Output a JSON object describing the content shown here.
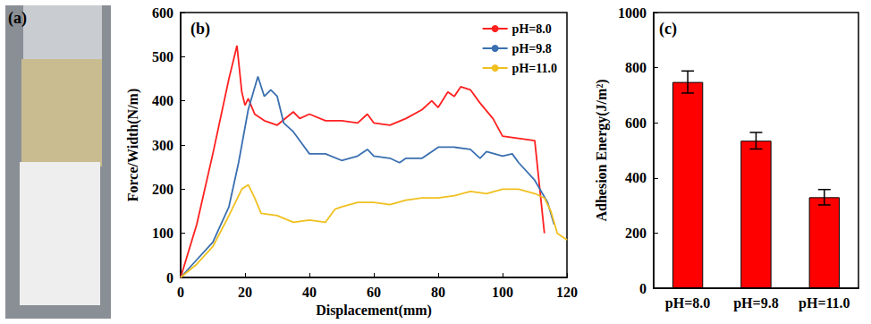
{
  "photo": {
    "label": "(a)"
  },
  "chart_data": [
    {
      "type": "line",
      "title": "(b)",
      "x_label": "Displacement(mm)",
      "y_label": "Force/Width(N/m)",
      "xlim": [
        0,
        120
      ],
      "xticks": [
        0,
        20,
        40,
        60,
        80,
        100,
        120
      ],
      "ylim": [
        0,
        600
      ],
      "yticks": [
        0,
        100,
        200,
        300,
        400,
        500,
        600
      ],
      "grid": false,
      "legend": "top-right",
      "series": [
        {
          "name": "pH=8.0",
          "color": "#ff2020",
          "x": [
            0,
            5,
            10,
            15,
            17.5,
            19,
            20,
            21,
            23,
            26,
            30,
            35,
            37,
            40,
            45,
            50,
            55,
            58,
            60,
            65,
            70,
            75,
            78,
            80,
            83,
            85,
            87,
            90,
            93,
            97,
            100,
            105,
            110,
            113
          ],
          "values": [
            0,
            120,
            280,
            450,
            525,
            420,
            390,
            405,
            370,
            355,
            345,
            375,
            360,
            370,
            355,
            355,
            350,
            370,
            350,
            345,
            360,
            380,
            400,
            385,
            420,
            410,
            432,
            425,
            395,
            360,
            320,
            315,
            310,
            100
          ]
        },
        {
          "name": "pH=9.8",
          "color": "#3a6fb0",
          "x": [
            0,
            5,
            10,
            15,
            18,
            21,
            24,
            26,
            28,
            30,
            32,
            35,
            38,
            40,
            45,
            50,
            55,
            58,
            60,
            65,
            68,
            70,
            75,
            78,
            80,
            85,
            90,
            93,
            95,
            100,
            103,
            105,
            110,
            114,
            116
          ],
          "values": [
            0,
            40,
            80,
            160,
            260,
            380,
            455,
            410,
            425,
            410,
            350,
            330,
            300,
            280,
            280,
            265,
            275,
            290,
            275,
            270,
            260,
            270,
            270,
            285,
            295,
            295,
            290,
            270,
            285,
            275,
            280,
            260,
            220,
            170,
            120
          ]
        },
        {
          "name": "pH=11.0",
          "color": "#f0c020",
          "x": [
            0,
            5,
            10,
            15,
            19,
            21,
            23,
            25,
            30,
            35,
            40,
            45,
            48,
            50,
            55,
            60,
            65,
            70,
            75,
            80,
            85,
            90,
            95,
            100,
            105,
            110,
            113,
            115,
            117,
            120
          ],
          "values": [
            0,
            30,
            70,
            140,
            200,
            210,
            180,
            145,
            140,
            125,
            130,
            125,
            155,
            160,
            170,
            170,
            165,
            175,
            180,
            180,
            185,
            195,
            190,
            200,
            200,
            190,
            180,
            150,
            100,
            85
          ]
        }
      ]
    },
    {
      "type": "bar",
      "title": "(c)",
      "y_label": "Adhesion Energy(J/m²)",
      "categories": [
        "pH=8.0",
        "pH=9.8",
        "pH=11.0"
      ],
      "values": [
        748,
        535,
        330
      ],
      "errors": [
        40,
        30,
        28
      ],
      "color": "#ff0000",
      "ylim": [
        0,
        1000
      ],
      "yticks": [
        0,
        200,
        400,
        600,
        800,
        1000
      ],
      "grid": false
    }
  ]
}
